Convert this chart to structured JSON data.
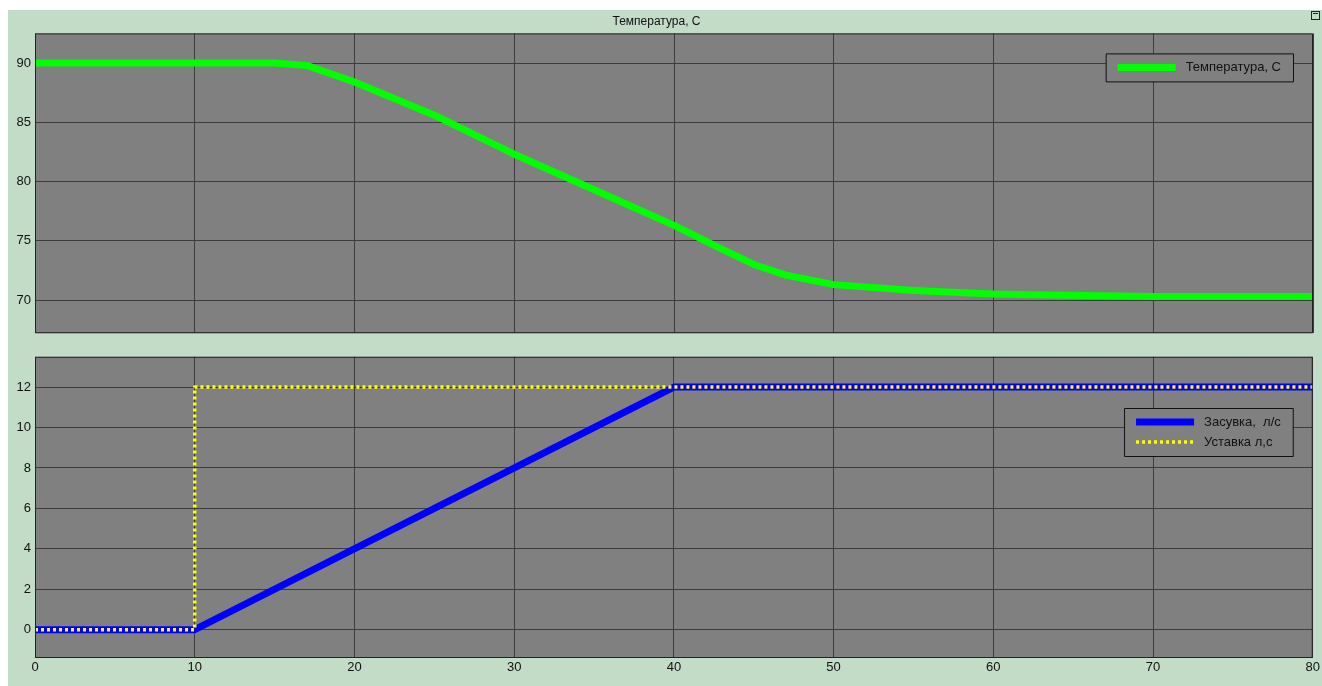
{
  "chart_data": [
    {
      "type": "line",
      "title": "Температура, С",
      "xlim": [
        0,
        80
      ],
      "xticks": [
        0,
        10,
        20,
        30,
        40,
        50,
        60,
        70,
        80
      ],
      "ylim": [
        67.2,
        92.5
      ],
      "yticks": [
        70,
        75,
        80,
        85,
        90
      ],
      "tick_labels": "y",
      "grid": true,
      "legend": "top right",
      "marker": "none",
      "line_style": "solid",
      "x": [
        0,
        5,
        10,
        15,
        17,
        20,
        25,
        30,
        35,
        40,
        43,
        45,
        47,
        50,
        55,
        60,
        70,
        80
      ],
      "series": [
        {
          "name": "Температура, С",
          "color": "#00ff00",
          "values": [
            90,
            90,
            90,
            90,
            89.8,
            88.4,
            85.6,
            82.3,
            79.3,
            76.3,
            74.3,
            73.0,
            72.1,
            71.3,
            70.8,
            70.5,
            70.3,
            70.3
          ]
        }
      ]
    },
    {
      "type": "line",
      "xlim": [
        0,
        80
      ],
      "xticks": [
        0,
        10,
        20,
        30,
        40,
        50,
        60,
        70,
        80
      ],
      "ylim": [
        -1.4,
        13.5
      ],
      "yticks": [
        0,
        2,
        4,
        6,
        8,
        10,
        12
      ],
      "grid": true,
      "legend": "right",
      "marker": "none",
      "series": [
        {
          "name": "Засувка,  л/с",
          "color": "#0000ff",
          "line_style": "solid",
          "x": [
            0,
            10,
            40,
            80
          ],
          "values": [
            0,
            0,
            12,
            12
          ]
        },
        {
          "name": "Уставка л,с",
          "color": "#ffff00",
          "line_style": "dotted",
          "x": [
            0,
            10,
            10,
            80
          ],
          "values": [
            0,
            0,
            12,
            12
          ]
        }
      ]
    }
  ]
}
